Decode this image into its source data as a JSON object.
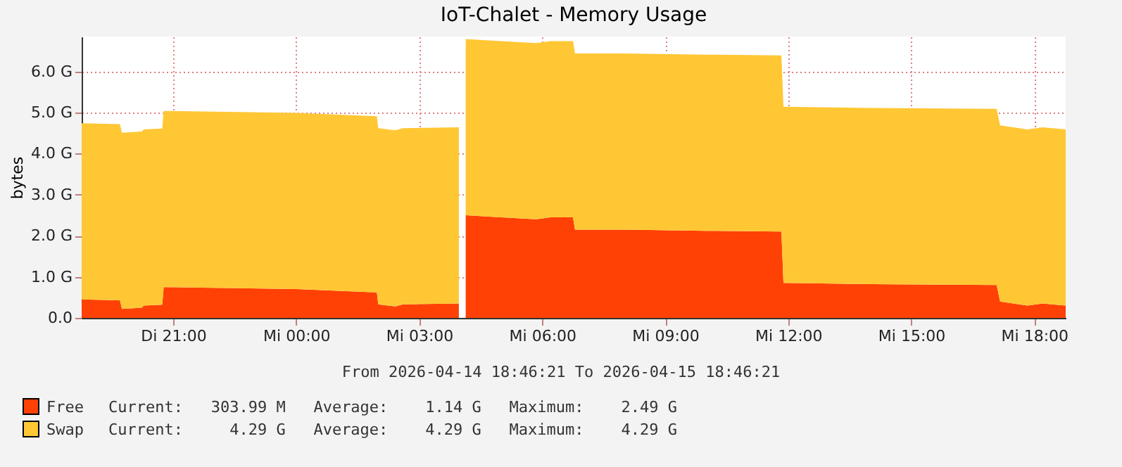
{
  "chart_data": {
    "type": "area",
    "title": "IoT-Chalet - Memory Usage",
    "ylabel": "bytes",
    "stacked": true,
    "grid": true,
    "legend": "bottom left",
    "x": [
      "2026-04-14T18:46",
      "2026-04-14T19:42",
      "2026-04-14T19:45",
      "2026-04-14T20:14",
      "2026-04-14T20:17",
      "2026-04-14T20:44",
      "2026-04-14T20:46",
      "2026-04-14T22:00",
      "2026-04-15T00:00",
      "2026-04-15T01:58",
      "2026-04-15T02:00",
      "2026-04-15T02:25",
      "2026-04-15T02:36",
      "2026-04-15T03:58",
      "2026-04-15T04:03",
      "2026-04-15T04:08",
      "2026-04-15T05:00",
      "2026-04-15T05:51",
      "2026-04-15T06:12",
      "2026-04-15T06:45",
      "2026-04-15T06:48",
      "2026-04-15T08:00",
      "2026-04-15T10:00",
      "2026-04-15T11:50",
      "2026-04-15T11:53",
      "2026-04-15T14:00",
      "2026-04-15T17:05",
      "2026-04-15T17:10",
      "2026-04-15T17:50",
      "2026-04-15T18:12",
      "2026-04-15T18:46"
    ],
    "series": [
      {
        "name": "Free",
        "color": "#ff4105",
        "values": [
          0.45,
          0.43,
          0.22,
          0.25,
          0.3,
          0.32,
          0.75,
          0.73,
          0.7,
          0.62,
          0.33,
          0.28,
          0.33,
          0.35,
          null,
          2.5,
          2.45,
          2.4,
          2.45,
          2.45,
          2.15,
          2.15,
          2.12,
          2.1,
          0.85,
          0.82,
          0.8,
          0.4,
          0.3,
          0.35,
          0.3
        ]
      },
      {
        "name": "Swap",
        "color": "#ffc734",
        "values": [
          4.29,
          4.29,
          4.29,
          4.29,
          4.29,
          4.29,
          4.29,
          4.29,
          4.29,
          4.29,
          4.29,
          4.29,
          4.29,
          4.29,
          null,
          4.29,
          4.29,
          4.29,
          4.29,
          4.29,
          4.29,
          4.29,
          4.29,
          4.29,
          4.29,
          4.29,
          4.29,
          4.29,
          4.29,
          4.29,
          4.29
        ]
      }
    ],
    "xlim": [
      "2026-04-14T18:46",
      "2026-04-15T18:46"
    ],
    "xticks": [
      {
        "value": "2026-04-14T21:00",
        "label": "Di 21:00"
      },
      {
        "value": "2026-04-15T00:00",
        "label": "Mi 00:00"
      },
      {
        "value": "2026-04-15T03:00",
        "label": "Mi 03:00"
      },
      {
        "value": "2026-04-15T06:00",
        "label": "Mi 06:00"
      },
      {
        "value": "2026-04-15T09:00",
        "label": "Mi 09:00"
      },
      {
        "value": "2026-04-15T12:00",
        "label": "Mi 12:00"
      },
      {
        "value": "2026-04-15T15:00",
        "label": "Mi 15:00"
      },
      {
        "value": "2026-04-15T18:00",
        "label": "Mi 18:00"
      }
    ],
    "ylim": [
      0,
      6.85
    ],
    "yticks": [
      {
        "value": 0,
        "label": "0.0"
      },
      {
        "value": 1,
        "label": "1.0 G"
      },
      {
        "value": 2,
        "label": "2.0 G"
      },
      {
        "value": 3,
        "label": "3.0 G"
      },
      {
        "value": 4,
        "label": "4.0 G"
      },
      {
        "value": 5,
        "label": "5.0 G"
      },
      {
        "value": 6,
        "label": "6.0 G"
      }
    ],
    "annotations": [
      "From 2026-04-14 18:46:21 To 2026-04-15 18:46:21",
      "Current:   303.99 M   Average:    1.14 G   Maximum:    2.49 G",
      "Current:     4.29 G   Average:    4.29 G   Maximum:    4.29 G"
    ]
  }
}
